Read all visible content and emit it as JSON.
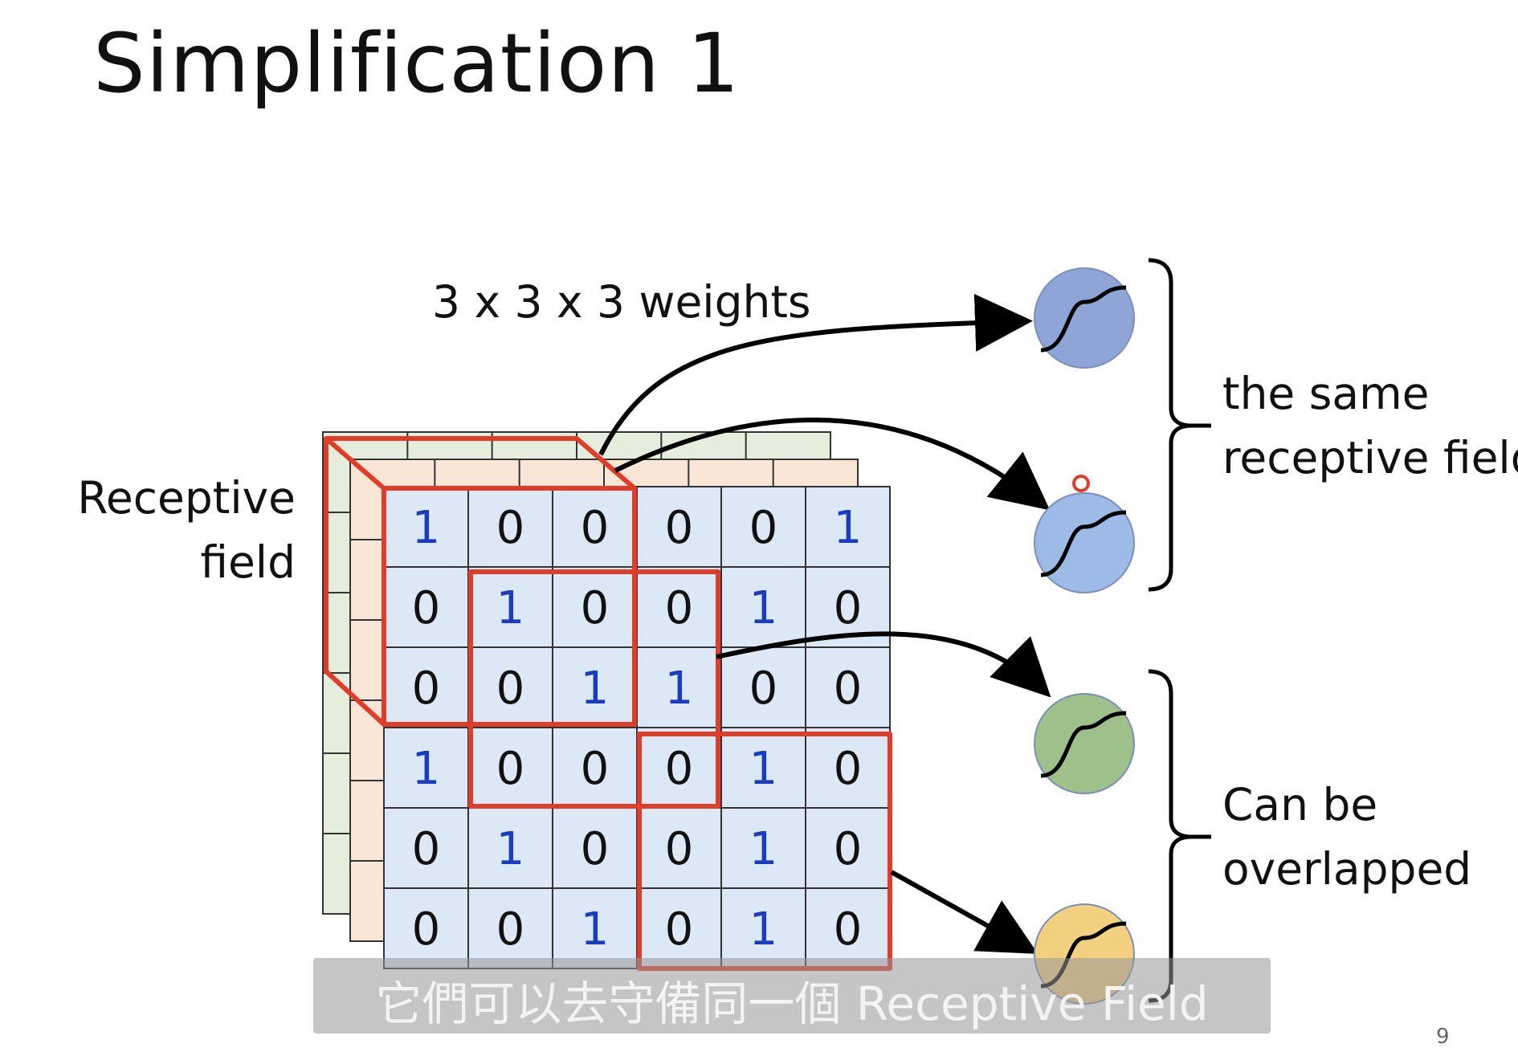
{
  "title": "Simplification 1",
  "weights_label": "3 x 3 x 3 weights",
  "receptive_field_label": [
    "Receptive",
    "field"
  ],
  "group_top_label": [
    "the same",
    "receptive field"
  ],
  "group_bottom_label": [
    "Can be",
    "overlapped"
  ],
  "matrix_front": [
    [
      1,
      0,
      0,
      0,
      0,
      1
    ],
    [
      0,
      1,
      0,
      0,
      1,
      0
    ],
    [
      0,
      0,
      1,
      1,
      0,
      0
    ],
    [
      1,
      0,
      0,
      0,
      1,
      0
    ],
    [
      0,
      1,
      0,
      0,
      1,
      0
    ],
    [
      0,
      0,
      1,
      0,
      1,
      0
    ]
  ],
  "neurons": [
    {
      "name": "neuron-blue-1",
      "color": "#8fa5d8"
    },
    {
      "name": "neuron-blue-2",
      "color": "#9dbbe6"
    },
    {
      "name": "neuron-green",
      "color": "#9ec08a"
    },
    {
      "name": "neuron-yellow",
      "color": "#f3d080"
    }
  ],
  "colors": {
    "front_layer": "#dce8f5",
    "middle_layer": "#fae6d6",
    "back_layer": "#e5eedc",
    "receptive_box": "#e03c2a",
    "value_one": "#1a3dbf",
    "value_zero": "#111111"
  },
  "subtitle": "它們可以去守備同一個 Receptive Field",
  "page_number": "9"
}
